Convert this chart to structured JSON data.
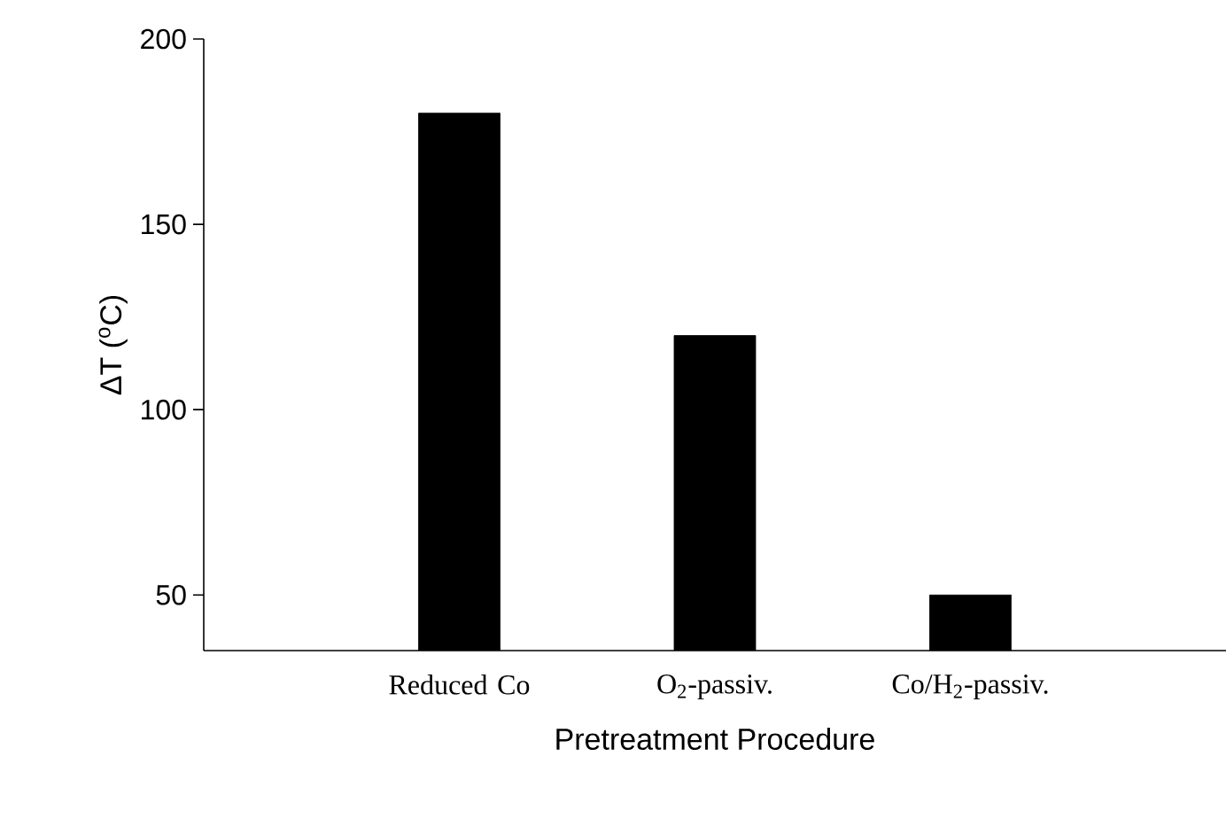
{
  "chart_data": {
    "type": "bar",
    "xlabel": "Pretreatment Procedure",
    "ylabel": "ΔT ($^{o}$C)",
    "categories": [
      "Reduced Co",
      "O$_{2}$-passiv.",
      "Co/H$_{2}$-passiv."
    ],
    "values": [
      180,
      120,
      50
    ],
    "color": "#000000",
    "ylim": [
      35,
      200
    ],
    "yticks": [
      50,
      100,
      150,
      200
    ],
    "grid": false
  }
}
